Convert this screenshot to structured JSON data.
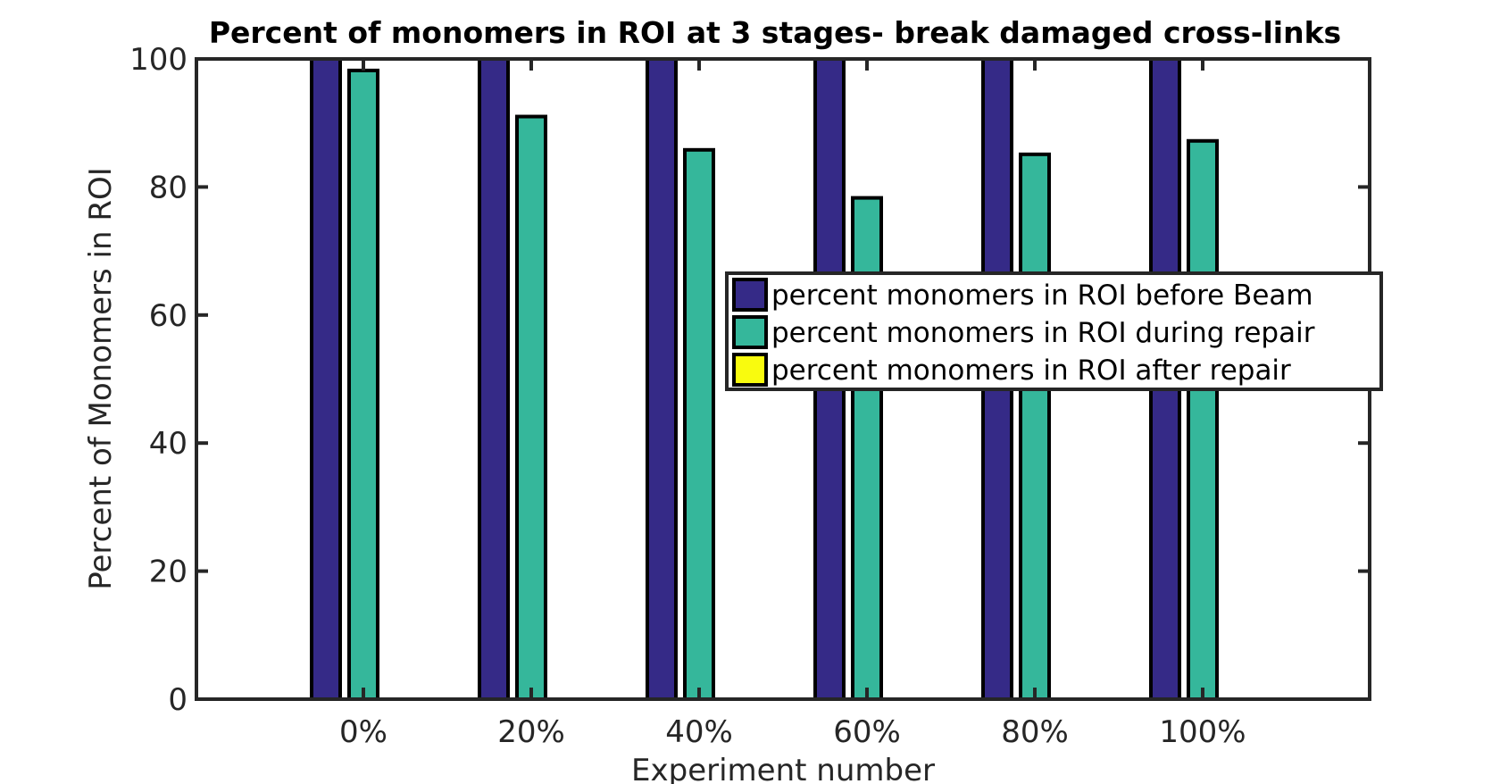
{
  "chart_data": {
    "type": "bar",
    "title": "Percent of monomers in ROI at 3 stages- break damaged cross-links",
    "xlabel": "Experiment number",
    "ylabel": "Percent of Monomers in ROI",
    "categories": [
      "0%",
      "20%",
      "40%",
      "60%",
      "80%",
      "100%"
    ],
    "ylim": [
      0,
      100
    ],
    "yticks": [
      0,
      20,
      40,
      60,
      80,
      100
    ],
    "grid": false,
    "legend_position": "center-right",
    "series": [
      {
        "name": "percent monomers in ROI before Beam",
        "color": "#352a87",
        "values": [
          100,
          100,
          100,
          100,
          100,
          100
        ]
      },
      {
        "name": "percent monomers in ROI during repair",
        "color": "#35b79b",
        "values": [
          98.2,
          91.0,
          85.8,
          78.3,
          85.1,
          87.2
        ]
      },
      {
        "name": "percent monomers in ROI after repair",
        "color": "#f9fb0e",
        "values": [
          0,
          0,
          0,
          0,
          0,
          0
        ]
      }
    ]
  }
}
